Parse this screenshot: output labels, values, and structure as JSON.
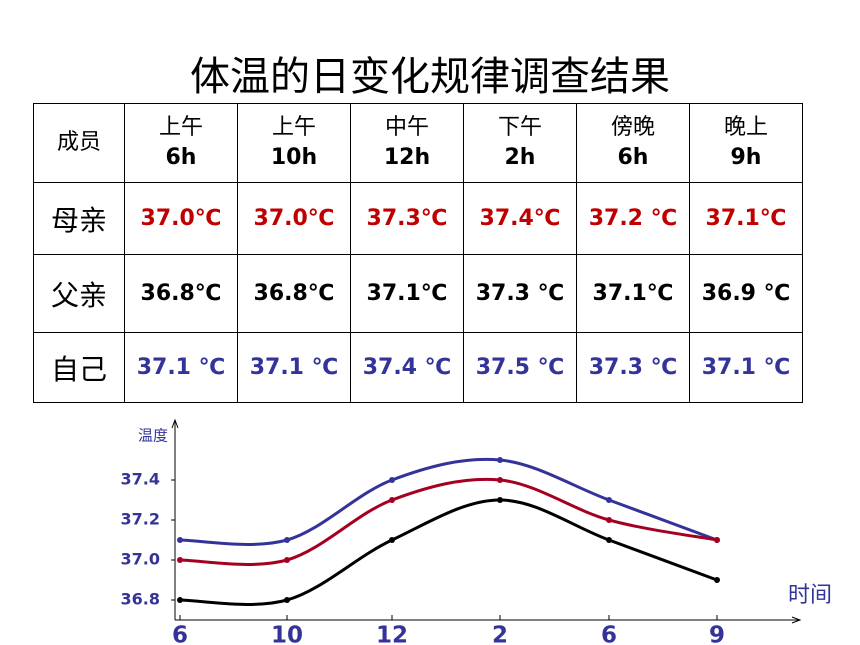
{
  "title": "体温的日变化规律调查结果",
  "table": {
    "header": [
      {
        "text": "成员"
      },
      {
        "period": "上午",
        "hour": "6h"
      },
      {
        "period": "上午",
        "hour": "10h"
      },
      {
        "period": "中午",
        "hour": "12h"
      },
      {
        "period": "下午",
        "hour": "2h"
      },
      {
        "period": "傍晚",
        "hour": "6h"
      },
      {
        "period": "晚上",
        "hour": "9h"
      }
    ],
    "rows": [
      [
        "母亲",
        "37.0℃",
        "37.0℃",
        "37.3℃",
        "37.4℃",
        "37.2 ℃",
        "37.1℃"
      ],
      [
        "父亲",
        "36.8℃",
        "36.8℃",
        "37.1℃",
        "37.3 ℃",
        "37.1℃",
        "36.9 ℃"
      ],
      [
        "自己",
        "37.1 ℃",
        "37.1 ℃",
        "37.4 ℃",
        "37.5 ℃",
        "37.3 ℃",
        "37.1 ℃"
      ]
    ]
  },
  "chart_data": {
    "type": "line",
    "y_label": "温度",
    "x_label": "时间",
    "categories": [
      "6",
      "10",
      "12",
      "2",
      "6",
      "9"
    ],
    "ylim": [
      36.7,
      37.7
    ],
    "yticks": [
      36.8,
      {
        "value": 37,
        "label": "37.0"
      },
      37.2,
      37.4
    ],
    "series": [
      {
        "color": "#333399",
        "values": [
          37.1,
          37.1,
          37.4,
          37.5,
          37.3,
          37.1
        ]
      },
      {
        "color": "#a50021",
        "values": [
          37.0,
          37.0,
          37.3,
          37.4,
          37.2,
          37.1
        ]
      },
      {
        "color": "#000000",
        "values": [
          36.8,
          36.8,
          37.1,
          37.3,
          37.1,
          36.9
        ]
      }
    ]
  }
}
